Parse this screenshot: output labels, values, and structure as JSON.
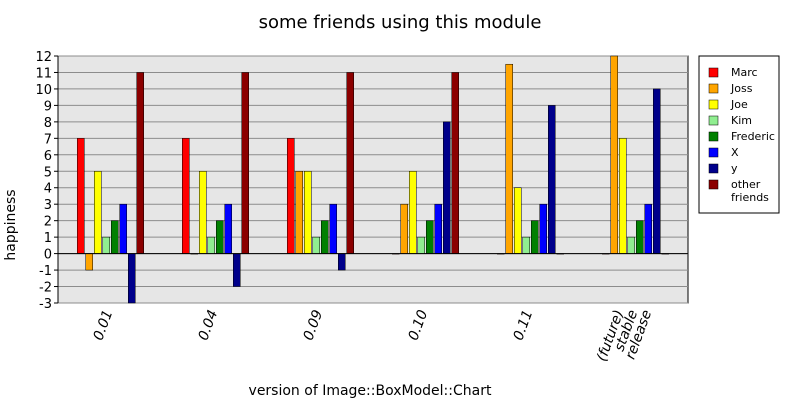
{
  "chart_data": {
    "type": "bar",
    "title": "some friends using this module",
    "xlabel": "version of Image::BoxModel::Chart",
    "ylabel": "happiness",
    "ylim": [
      -3,
      12
    ],
    "yticks": [
      -3,
      -2,
      -1,
      0,
      1,
      2,
      3,
      4,
      5,
      6,
      7,
      8,
      9,
      10,
      11,
      12
    ],
    "grid": true,
    "legend_position": "right",
    "categories": [
      [
        "0.01"
      ],
      [
        "0.04"
      ],
      [
        "0.09"
      ],
      [
        "0.10"
      ],
      [
        "0.11"
      ],
      [
        "(future)",
        "stable",
        "release"
      ]
    ],
    "series": [
      {
        "name": "Marc",
        "color": "#ff0000",
        "values": [
          7,
          7,
          7,
          0,
          0,
          0
        ]
      },
      {
        "name": "Joss",
        "color": "#ffa500",
        "values": [
          -1,
          0,
          5,
          3,
          11.5,
          12
        ]
      },
      {
        "name": "Joe",
        "color": "#ffff00",
        "values": [
          5,
          5,
          5,
          5,
          4,
          7
        ]
      },
      {
        "name": "Kim",
        "color": "#90ee90",
        "values": [
          1,
          1,
          1,
          1,
          1,
          1
        ]
      },
      {
        "name": "Frederic",
        "color": "#008000",
        "values": [
          2,
          2,
          2,
          2,
          2,
          2
        ]
      },
      {
        "name": "X",
        "color": "#0000ff",
        "values": [
          3,
          3,
          3,
          3,
          3,
          3
        ]
      },
      {
        "name": "y",
        "color": "#00008b",
        "values": [
          -3,
          -2,
          -1,
          8,
          9,
          10
        ]
      },
      {
        "name": [
          "other",
          "friends"
        ],
        "color": "#8b0000",
        "values": [
          11,
          11,
          11,
          11,
          0,
          0
        ]
      }
    ]
  }
}
